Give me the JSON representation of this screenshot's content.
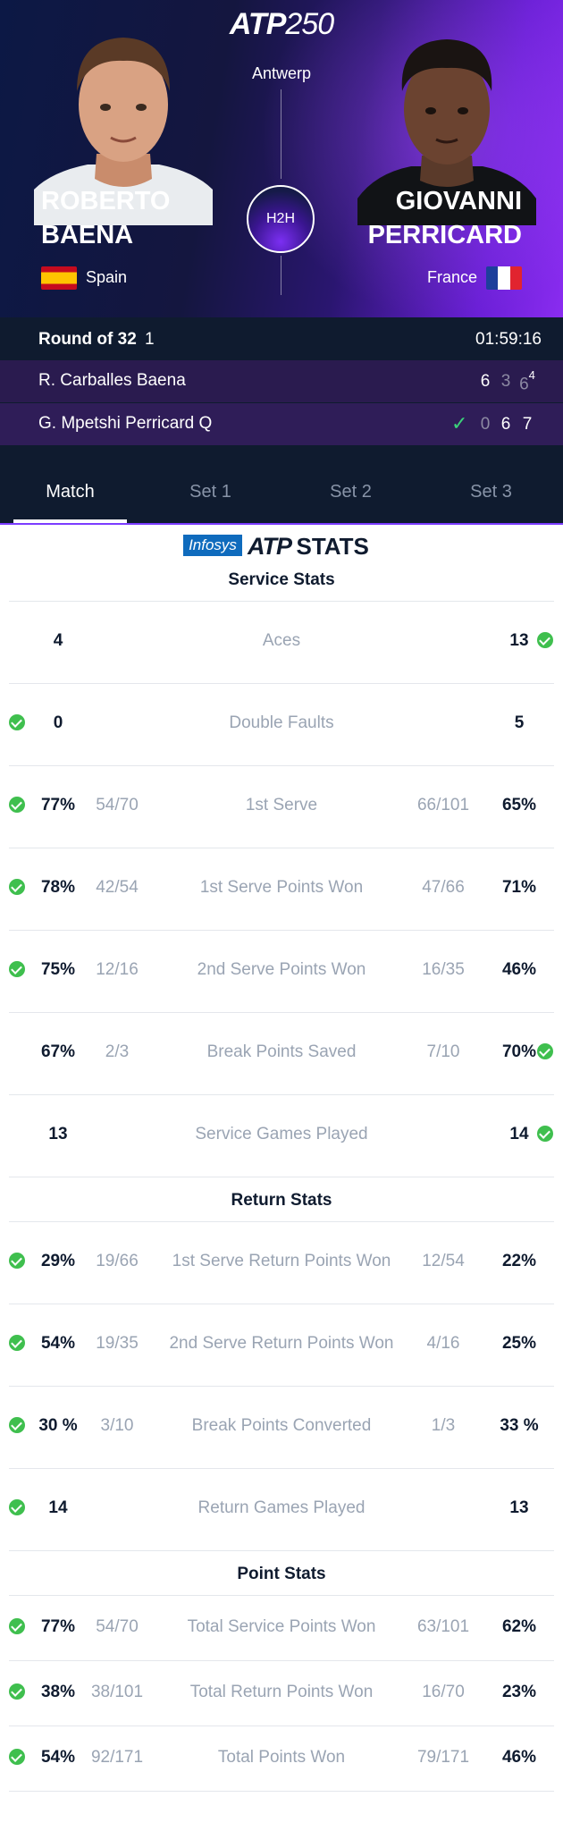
{
  "header": {
    "logo_main": "ATP",
    "logo_num": "250",
    "city": "Antwerp",
    "h2h_label": "H2H",
    "player1": {
      "first": "ROBERTO",
      "last": "BAENA",
      "country": "Spain",
      "flag_icon": "spain-flag-icon"
    },
    "player2": {
      "first": "GIOVANNI",
      "last": "PERRICARD",
      "country": "France",
      "flag_icon": "france-flag-icon"
    }
  },
  "match": {
    "round": "Round of 32",
    "round_num": "1",
    "duration": "01:59:16",
    "rows": [
      {
        "name": "R. Carballes Baena",
        "winner": false,
        "sets": [
          "6",
          "3",
          "6"
        ],
        "tiebreak": "4"
      },
      {
        "name": "G. Mpetshi Perricard  Q",
        "winner": true,
        "sets": [
          "0",
          "6",
          "7"
        ],
        "tiebreak": ""
      }
    ]
  },
  "tabs": [
    {
      "label": "Match",
      "active": true
    },
    {
      "label": "Set 1",
      "active": false
    },
    {
      "label": "Set 2",
      "active": false
    },
    {
      "label": "Set 3",
      "active": false
    }
  ],
  "stats_brand": {
    "sponsor": "Infosys",
    "atp": "ATP",
    "stats": "STATS"
  },
  "colors": {
    "accent": "#7b3cff",
    "winner_check": "#3fbf4e",
    "header_dark": "#0f1b2f"
  },
  "sections": [
    {
      "title": "Service Stats",
      "rows": [
        {
          "label": "Aces",
          "lpct": "4",
          "lfrac": "",
          "rfrac": "",
          "rpct": "13",
          "lchk": false,
          "rchk": true
        },
        {
          "label": "Double Faults",
          "lpct": "0",
          "lfrac": "",
          "rfrac": "",
          "rpct": "5",
          "lchk": true,
          "rchk": false
        },
        {
          "label": "1st Serve",
          "lpct": "77%",
          "lfrac": "54/70",
          "rfrac": "66/101",
          "rpct": "65%",
          "lchk": true,
          "rchk": false
        },
        {
          "label": "1st Serve Points Won",
          "lpct": "78%",
          "lfrac": "42/54",
          "rfrac": "47/66",
          "rpct": "71%",
          "lchk": true,
          "rchk": false
        },
        {
          "label": "2nd Serve Points Won",
          "lpct": "75%",
          "lfrac": "12/16",
          "rfrac": "16/35",
          "rpct": "46%",
          "lchk": true,
          "rchk": false
        },
        {
          "label": "Break Points Saved",
          "lpct": "67%",
          "lfrac": "2/3",
          "rfrac": "7/10",
          "rpct": "70%",
          "lchk": false,
          "rchk": true
        },
        {
          "label": "Service Games Played",
          "lpct": "13",
          "lfrac": "",
          "rfrac": "",
          "rpct": "14",
          "lchk": false,
          "rchk": true
        }
      ]
    },
    {
      "title": "Return Stats",
      "rows": [
        {
          "label": "1st Serve Return Points Won",
          "lpct": "29%",
          "lfrac": "19/66",
          "rfrac": "12/54",
          "rpct": "22%",
          "lchk": true,
          "rchk": false
        },
        {
          "label": "2nd Serve Return Points Won",
          "lpct": "54%",
          "lfrac": "19/35",
          "rfrac": "4/16",
          "rpct": "25%",
          "lchk": true,
          "rchk": false
        },
        {
          "label": "Break Points Converted",
          "lpct": "30 %",
          "lfrac": "3/10",
          "rfrac": "1/3",
          "rpct": "33 %",
          "lchk": true,
          "rchk": false
        },
        {
          "label": "Return Games Played",
          "lpct": "14",
          "lfrac": "",
          "rfrac": "",
          "rpct": "13",
          "lchk": true,
          "rchk": false
        }
      ]
    },
    {
      "title": "Point Stats",
      "rows": [
        {
          "label": "Total Service Points Won",
          "lpct": "77%",
          "lfrac": "54/70",
          "rfrac": "63/101",
          "rpct": "62%",
          "lchk": true,
          "rchk": false
        },
        {
          "label": "Total Return Points Won",
          "lpct": "38%",
          "lfrac": "38/101",
          "rfrac": "16/70",
          "rpct": "23%",
          "lchk": true,
          "rchk": false
        },
        {
          "label": "Total Points Won",
          "lpct": "54%",
          "lfrac": "92/171",
          "rfrac": "79/171",
          "rpct": "46%",
          "lchk": true,
          "rchk": false
        }
      ]
    }
  ]
}
